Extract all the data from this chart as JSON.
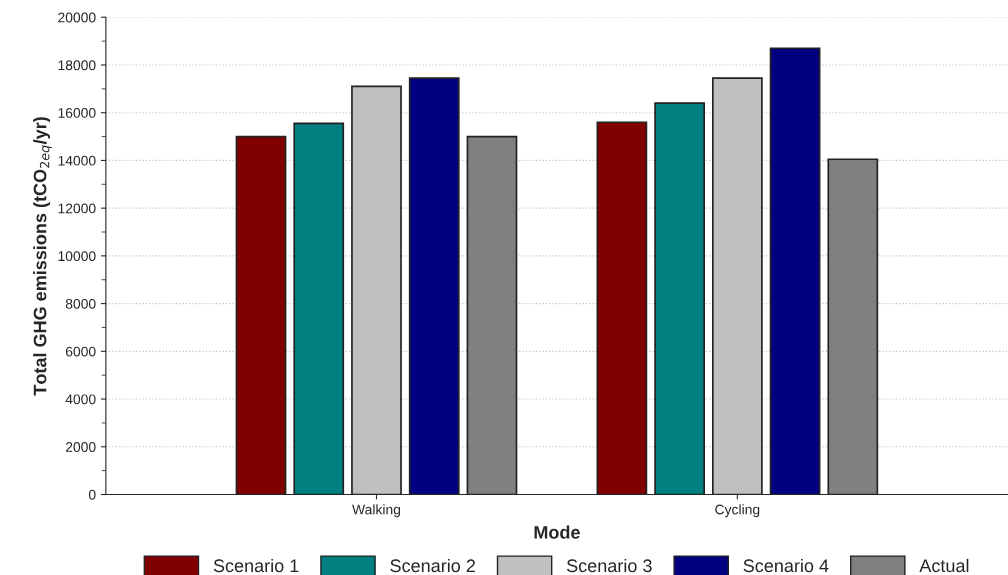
{
  "chart_data": {
    "type": "bar",
    "xlabel": "Mode",
    "ylabel": "Total GHG emissions (tCO$_{2eq}$/yr)",
    "categories": [
      "Walking",
      "Cycling"
    ],
    "series": [
      {
        "name": "Scenario 1",
        "color": "#800000",
        "values": [
          15000,
          15600
        ]
      },
      {
        "name": "Scenario 2",
        "color": "#008080",
        "values": [
          15550,
          16400
        ]
      },
      {
        "name": "Scenario 3",
        "color": "#c0c0c0",
        "values": [
          17100,
          17450
        ]
      },
      {
        "name": "Scenario 4",
        "color": "#000080",
        "values": [
          17450,
          18700
        ]
      },
      {
        "name": "Actual",
        "color": "#808080",
        "values": [
          15000,
          14050
        ]
      }
    ],
    "ylim": [
      0,
      20000
    ],
    "yticks": [
      0,
      2000,
      4000,
      6000,
      8000,
      10000,
      12000,
      14000,
      16000,
      18000,
      20000
    ],
    "grid": "y",
    "legend": "bottom"
  }
}
